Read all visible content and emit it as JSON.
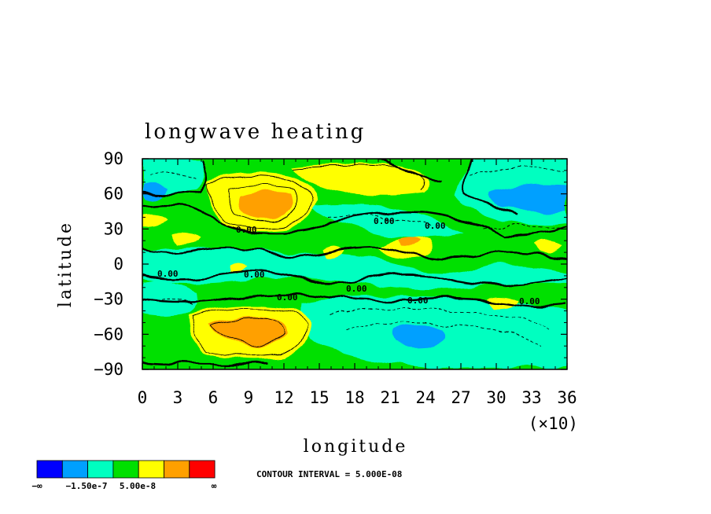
{
  "chart_data": {
    "type": "heatmap",
    "title": "longwave heating",
    "xlabel": "longitude",
    "ylabel": "latitude",
    "x_multiplier_label": "(×10)",
    "xlim": [
      0,
      36
    ],
    "ylim": [
      -90,
      90
    ],
    "x_ticks": [
      0,
      3,
      6,
      9,
      12,
      15,
      18,
      21,
      24,
      27,
      30,
      33,
      36
    ],
    "x_tick_labels": [
      "0",
      "3",
      "6",
      "9",
      "12",
      "15",
      "18",
      "21",
      "24",
      "27",
      "30",
      "33",
      "36"
    ],
    "y_ticks": [
      90,
      60,
      30,
      0,
      -30,
      -60,
      -90
    ],
    "y_tick_labels": [
      "90",
      "60",
      "30",
      "0",
      "−30",
      "−60",
      "−90"
    ],
    "contour_line_label": "0.00",
    "contour_interval_text": "CONTOUR INTERVAL = 5.000E-08",
    "colorbar": {
      "colors": [
        "#0000ff",
        "#00a0ff",
        "#00ffc0",
        "#00e000",
        "#ffff00",
        "#ffa000",
        "#ff0000"
      ],
      "labels": [
        "−∞",
        "−1.50e-7",
        "5.00e-8",
        "∞"
      ]
    }
  }
}
